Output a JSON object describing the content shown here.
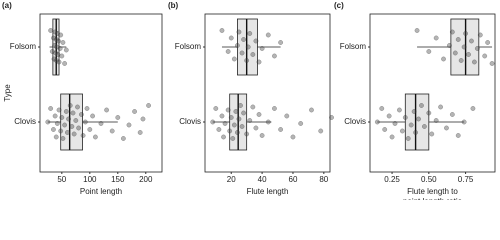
{
  "chart_data": [
    {
      "type": "box",
      "panel_label": "(a)",
      "ylabel": "Type",
      "xlabel": [
        "Point length"
      ],
      "categories": [
        "Folsom",
        "Clovis"
      ],
      "xlim": [
        11,
        229
      ],
      "xticks": [
        50,
        100,
        150,
        200
      ],
      "box_color": "#e6e6e6",
      "point_color": "#444444",
      "series": [
        {
          "box": [
            28,
            34,
            40,
            45,
            58
          ],
          "points": [
            30,
            33,
            35,
            36,
            37,
            38,
            39,
            40,
            40,
            41,
            42,
            43,
            44,
            45,
            47,
            48,
            50,
            52,
            55,
            58
          ]
        },
        {
          "box": [
            25,
            48,
            64,
            87,
            150
          ],
          "points": [
            25,
            30,
            35,
            38,
            40,
            42,
            45,
            48,
            50,
            52,
            55,
            58,
            60,
            62,
            65,
            68,
            70,
            72,
            75,
            78,
            80,
            85,
            88,
            92,
            95,
            100,
            105,
            110,
            120,
            130,
            140,
            150,
            160,
            170,
            180,
            190,
            195,
            205
          ]
        }
      ]
    },
    {
      "type": "box",
      "panel_label": "(b)",
      "xlabel": [
        "Flute length"
      ],
      "categories": [
        "Folsom",
        "Clovis"
      ],
      "xlim": [
        3,
        84
      ],
      "xticks": [
        20,
        40,
        60,
        80
      ],
      "box_color": "#e6e6e6",
      "point_color": "#444444",
      "series": [
        {
          "box": [
            14,
            24,
            30,
            37,
            52
          ],
          "points": [
            14,
            18,
            20,
            22,
            24,
            25,
            27,
            28,
            30,
            31,
            32,
            34,
            36,
            38,
            40,
            44,
            48,
            52
          ]
        },
        {
          "box": [
            8,
            19,
            24.5,
            30,
            46
          ],
          "points": [
            8,
            10,
            12,
            14,
            15,
            16,
            18,
            19,
            20,
            21,
            22,
            23,
            24,
            25,
            26,
            27,
            28,
            30,
            32,
            34,
            36,
            38,
            40,
            44,
            48,
            52,
            56,
            60,
            65,
            72,
            78,
            85
          ]
        }
      ]
    },
    {
      "type": "box",
      "panel_label": "(c)",
      "xlabel": [
        "Flute length to",
        "point length ratio"
      ],
      "categories": [
        "Folsom",
        "Clovis"
      ],
      "xlim": [
        0.1,
        0.95
      ],
      "xticks": [
        0.25,
        {
          "value": 0.5,
          "label": "0.50"
        },
        0.75
      ],
      "box_color": "#e6e6e6",
      "point_color": "#444444",
      "series": [
        {
          "box": [
            0.42,
            0.65,
            0.75,
            0.84,
            0.93
          ],
          "points": [
            0.42,
            0.5,
            0.55,
            0.6,
            0.64,
            0.66,
            0.68,
            0.7,
            0.72,
            0.74,
            0.75,
            0.77,
            0.79,
            0.81,
            0.83,
            0.85,
            0.88,
            0.9,
            0.93
          ]
        },
        {
          "box": [
            0.15,
            0.34,
            0.41,
            0.5,
            0.74
          ],
          "points": [
            0.15,
            0.18,
            0.2,
            0.23,
            0.25,
            0.27,
            0.3,
            0.32,
            0.34,
            0.36,
            0.38,
            0.4,
            0.41,
            0.43,
            0.45,
            0.47,
            0.5,
            0.52,
            0.55,
            0.58,
            0.62,
            0.66,
            0.7,
            0.74,
            0.8
          ]
        }
      ]
    }
  ]
}
